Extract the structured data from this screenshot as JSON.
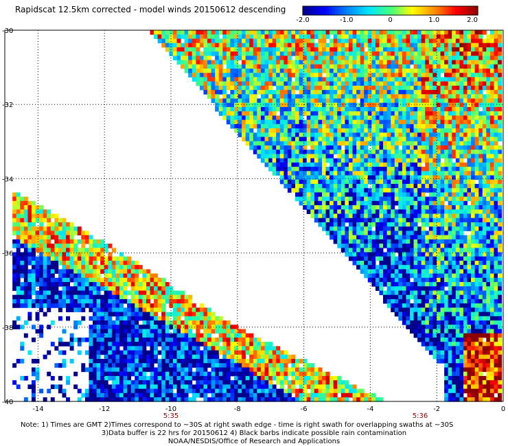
{
  "title": "Rapidscat 12.5km corrected - model winds 20150612 descending",
  "colorbar": {
    "tick_labels": [
      "-2.0",
      "-1.0",
      "0",
      "1.0",
      "2.0"
    ],
    "tick_values": [
      -2.0,
      -1.0,
      0,
      1.0,
      2.0
    ],
    "range": [
      -2.0,
      2.0
    ],
    "colors": [
      "#00008b",
      "#0000ff",
      "#0080ff",
      "#00e5ff",
      "#40ff80",
      "#ffff00",
      "#ff9000",
      "#ff0000",
      "#8b0000"
    ]
  },
  "chart_data": {
    "type": "heatmap",
    "title": "Rapidscat 12.5km corrected - model winds 20150612 descending",
    "xlabel": "",
    "ylabel": "",
    "x_ticks": [
      {
        "value": -14,
        "label": "-14"
      },
      {
        "value": -12,
        "label": "-12"
      },
      {
        "value": -10,
        "label": "-10"
      },
      {
        "value": -8,
        "label": "-8"
      },
      {
        "value": -6,
        "label": "-6"
      },
      {
        "value": -4,
        "label": "-4"
      },
      {
        "value": -2,
        "label": "-2"
      },
      {
        "value": 0,
        "label": "0"
      }
    ],
    "y_ticks": [
      {
        "value": -30,
        "label": "-30"
      },
      {
        "value": -32,
        "label": "-32"
      },
      {
        "value": -34,
        "label": "-34"
      },
      {
        "value": -36,
        "label": "-36"
      },
      {
        "value": -38,
        "label": "-38"
      },
      {
        "value": -40,
        "label": "-40"
      }
    ],
    "xlim": [
      -15,
      0
    ],
    "ylim": [
      -40,
      -30
    ],
    "grid": true,
    "time_labels": [
      {
        "lon": -10,
        "label": "5:35"
      },
      {
        "lon": -2.5,
        "label": "5:36"
      }
    ],
    "value_range": [
      -2.0,
      2.0
    ],
    "swaths": [
      {
        "name": "",
        "polygon": [
          [
            -10.7,
            -30
          ],
          [
            0,
            -30
          ],
          [
            0,
            -40
          ],
          [
            -1.8,
            -40
          ],
          [
            -1.8,
            -39.1
          ]
        ],
        "dominant_values": "mixed -1.5 to 2.0, mostly positive near top and right edge"
      },
      {
        "name": "",
        "polygon": [
          [
            -14.8,
            -34.3
          ],
          [
            -12.2,
            -35.6
          ],
          [
            -8.0,
            -38.0
          ],
          [
            -3.5,
            -40
          ],
          [
            -14.8,
            -40
          ]
        ],
        "dominant_values": "mostly -2.0 to -1.0 in west, mixed to 2.0 along eastern edge"
      }
    ]
  },
  "notes": {
    "line1": "Note: 1) Times are GMT 2)Times correspond to ~30S at right swath edge - time is right swath for overlapping swaths at ~30S",
    "line2": "3)Data buffer is 22 hrs for 20150612 4) Black barbs indicate possible rain contamination",
    "credit": "NOAA/NESDIS/Office of Research and Applications"
  }
}
